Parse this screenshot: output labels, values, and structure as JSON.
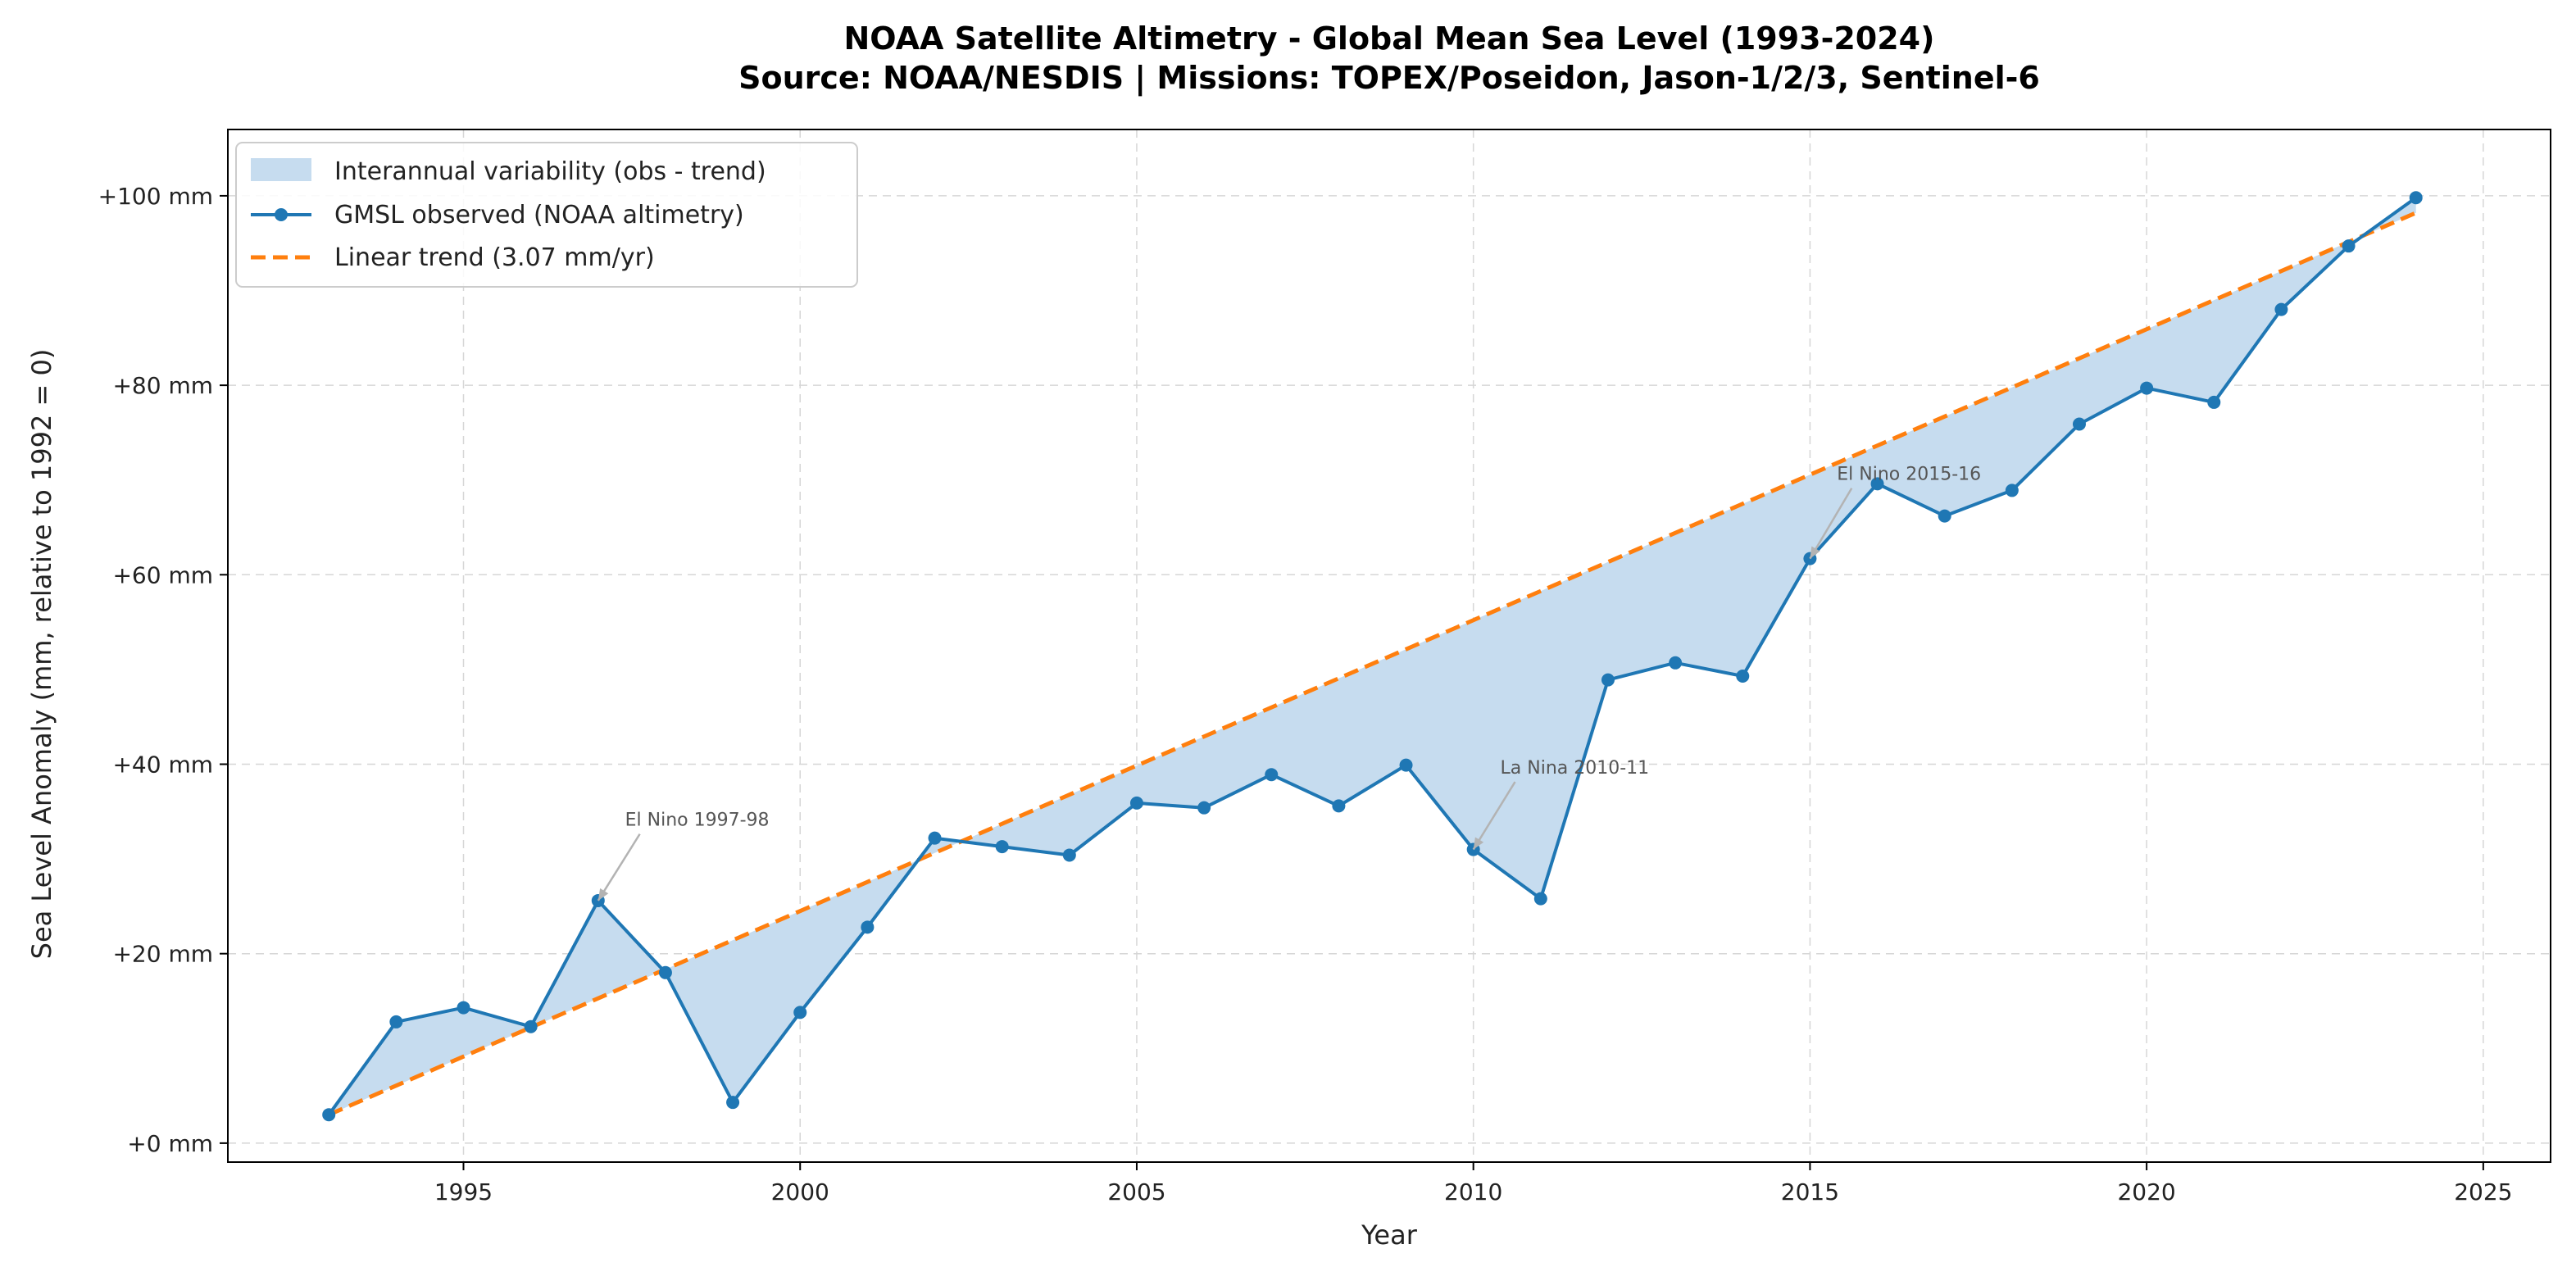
{
  "chart_data": {
    "type": "line",
    "title": "NOAA Satellite Altimetry - Global Mean Sea Level (1993-2024)",
    "subtitle": "Source: NOAA/NESDIS  |  Missions: TOPEX/Poseidon, Jason-1/2/3, Sentinel-6",
    "xlabel": "Year",
    "ylabel": "Sea Level Anomaly (mm, relative to 1992 = 0)",
    "xlim": [
      1991.5,
      2026
    ],
    "ylim": [
      -2,
      107
    ],
    "x_ticks": [
      1995,
      2000,
      2005,
      2010,
      2015,
      2020,
      2025
    ],
    "y_ticks": [
      0,
      20,
      40,
      60,
      80,
      100
    ],
    "y_tick_labels": [
      "+0 mm",
      "+20 mm",
      "+40 mm",
      "+60 mm",
      "+80 mm",
      "+100 mm"
    ],
    "grid": true,
    "legend_position": "upper-left",
    "series": [
      {
        "name": "GMSL observed (NOAA altimetry)",
        "color": "#1f77b4",
        "style": "solid-with-markers",
        "x": [
          1993,
          1994,
          1995,
          1996,
          1997,
          1998,
          1999,
          2000,
          2001,
          2002,
          2003,
          2004,
          2005,
          2006,
          2007,
          2008,
          2009,
          2010,
          2011,
          2012,
          2013,
          2014,
          2015,
          2016,
          2017,
          2018,
          2019,
          2020,
          2021,
          2022,
          2023,
          2024
        ],
        "values": [
          3.0,
          12.8,
          14.3,
          12.3,
          25.6,
          18.0,
          4.3,
          13.8,
          22.8,
          32.2,
          31.3,
          30.4,
          35.9,
          35.4,
          38.9,
          35.6,
          39.9,
          31.0,
          25.8,
          48.9,
          50.7,
          49.3,
          61.7,
          69.6,
          66.2,
          68.9,
          75.9,
          79.7,
          78.2,
          88.0,
          94.7,
          99.8
        ]
      },
      {
        "name": "Linear trend (3.07 mm/yr)",
        "color": "#ff7f0e",
        "style": "dashed",
        "x": [
          1993,
          2024
        ],
        "values": [
          3.0,
          98.2
        ]
      }
    ],
    "fill": {
      "name": "Interannual variability (obs - trend)",
      "color": "#c6dcef",
      "between": [
        "GMSL observed (NOAA altimetry)",
        "Linear trend (3.07 mm/yr)"
      ]
    },
    "annotations": [
      {
        "text": "El Nino 1997-98",
        "x": 1997,
        "y": 25.6,
        "text_x": 1997.4,
        "text_y": 33.5
      },
      {
        "text": "La Nina 2010-11",
        "x": 2010,
        "y": 31.0,
        "text_x": 2010.4,
        "text_y": 39
      },
      {
        "text": "El Nino 2015-16",
        "x": 2015,
        "y": 61.7,
        "text_x": 2015.4,
        "text_y": 70
      }
    ]
  }
}
